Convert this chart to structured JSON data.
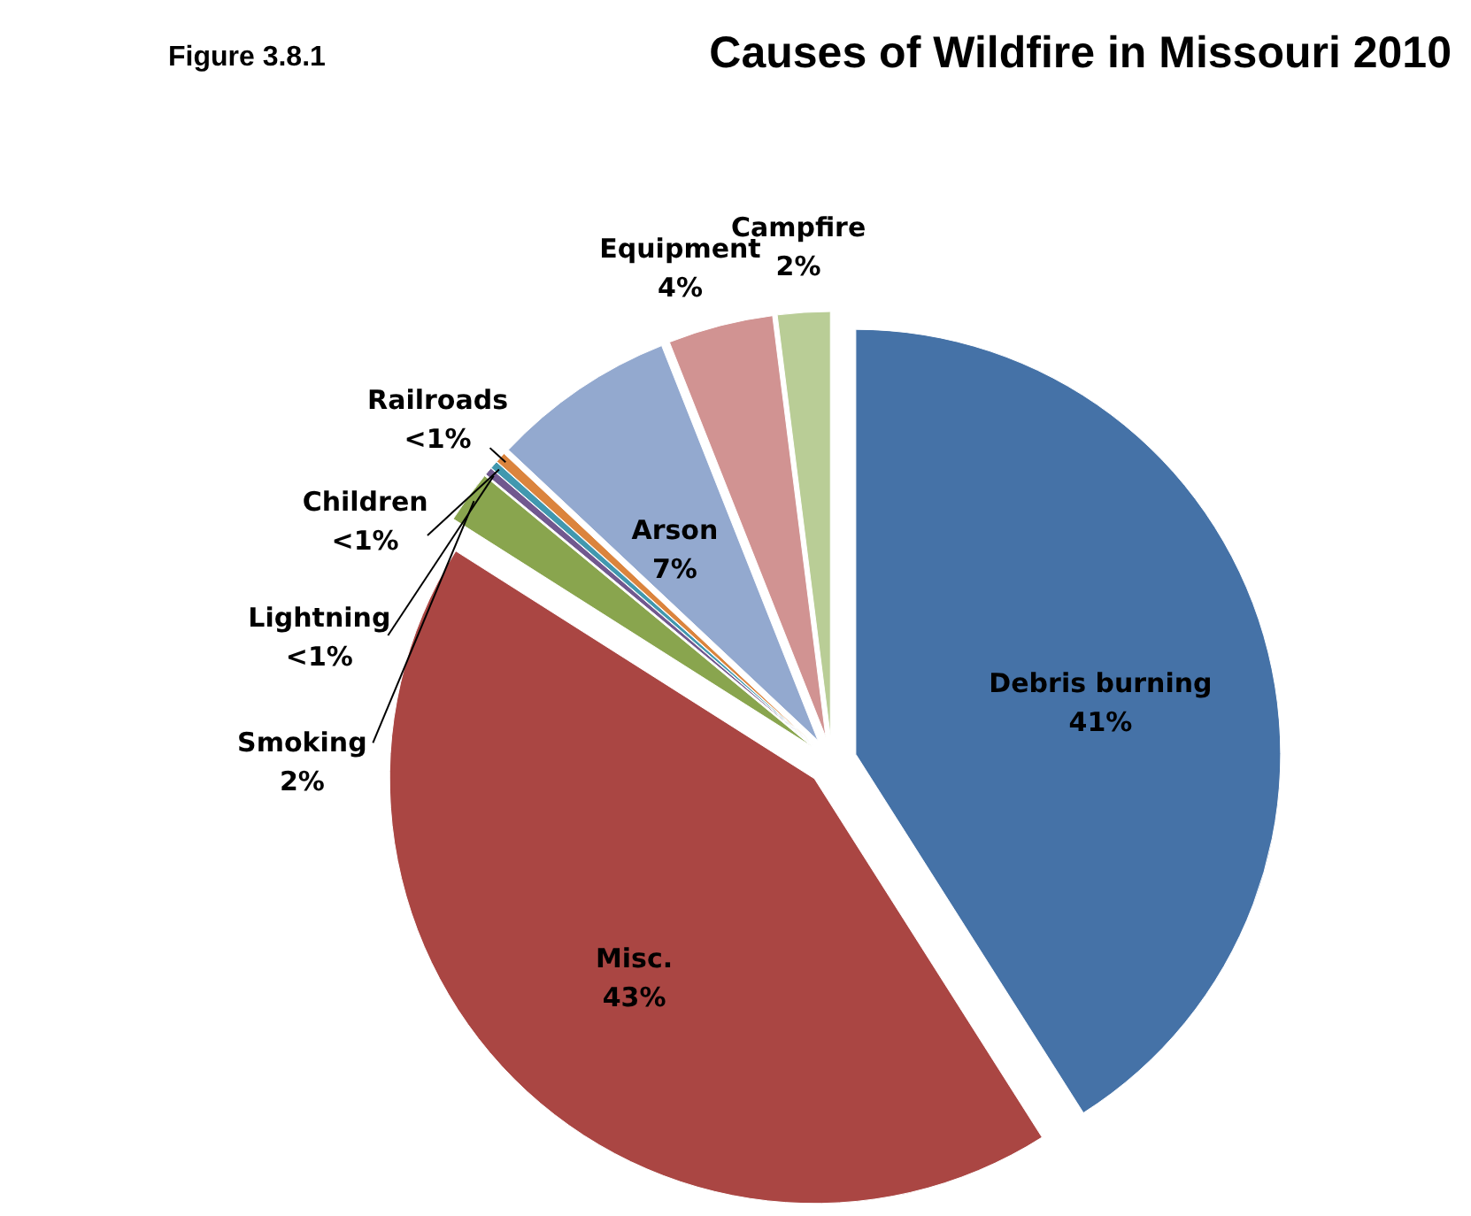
{
  "chart_data": {
    "type": "pie",
    "title": "Causes of Wildfire in Missouri 2010",
    "annotations": [
      "Figure 3.8.1"
    ],
    "categories": [
      "Debris burning",
      "Misc.",
      "Smoking",
      "Lightning",
      "Children",
      "Railroads",
      "Arson",
      "Equipment",
      "Campfire"
    ],
    "values": [
      41,
      43,
      2,
      0.3,
      0.3,
      0.4,
      7,
      4,
      2
    ],
    "value_labels": [
      "41%",
      "43%",
      "2%",
      "<1%",
      "<1%",
      "<1%",
      "7%",
      "4%",
      "2%"
    ],
    "colors": [
      "#4572a7",
      "#aa4643",
      "#89a54e",
      "#71588f",
      "#4198af",
      "#db843d",
      "#93a9cf",
      "#d19392",
      "#b9cd96"
    ]
  }
}
